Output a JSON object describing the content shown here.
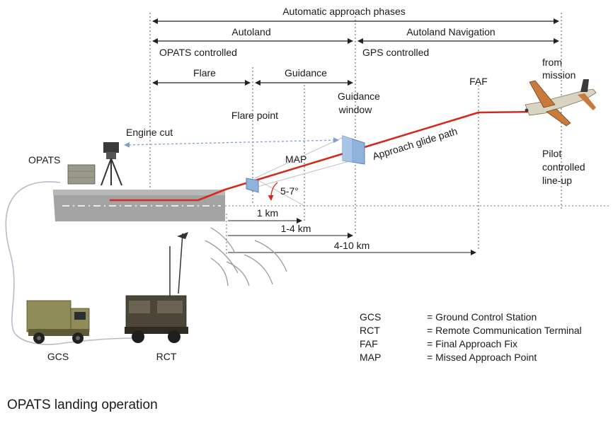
{
  "phases": {
    "top": "Automatic approach phases",
    "autoland": "Autoland",
    "autoland_navigation": "Autoland Navigation",
    "opats_controlled": "OPATS controlled",
    "gps_controlled": "GPS controlled",
    "flare": "Flare",
    "guidance": "Guidance"
  },
  "labels": {
    "faf": "FAF",
    "from_mission_1": "from",
    "from_mission_2": "mission",
    "guidance_window_1": "Guidance",
    "guidance_window_2": "window",
    "flare_point": "Flare point",
    "engine_cut": "Engine cut",
    "opats": "OPATS",
    "map": "MAP",
    "approach_glide_path": "Approach glide path",
    "angle": "5-7°",
    "pilot_1": "Pilot",
    "pilot_2": "controlled",
    "pilot_3": "line-up",
    "gcs": "GCS",
    "rct": "RCT"
  },
  "distances": {
    "d1": "1 km",
    "d2": "1-4 km",
    "d3": "4-10 km"
  },
  "legend": [
    {
      "abbr": "GCS",
      "desc": "= Ground Control Station"
    },
    {
      "abbr": "RCT",
      "desc": "= Remote Communication Terminal"
    },
    {
      "abbr": "FAF",
      "desc": "= Final Approach Fix"
    },
    {
      "abbr": "MAP",
      "desc": "= Missed Approach Point"
    }
  ],
  "caption": "OPATS landing operation",
  "colors": {
    "glide_path": "#d42a1c",
    "window": "#8fb3dc",
    "runway": "#9a9a9a",
    "engine_cut_arrow": "#7f9fd0"
  }
}
